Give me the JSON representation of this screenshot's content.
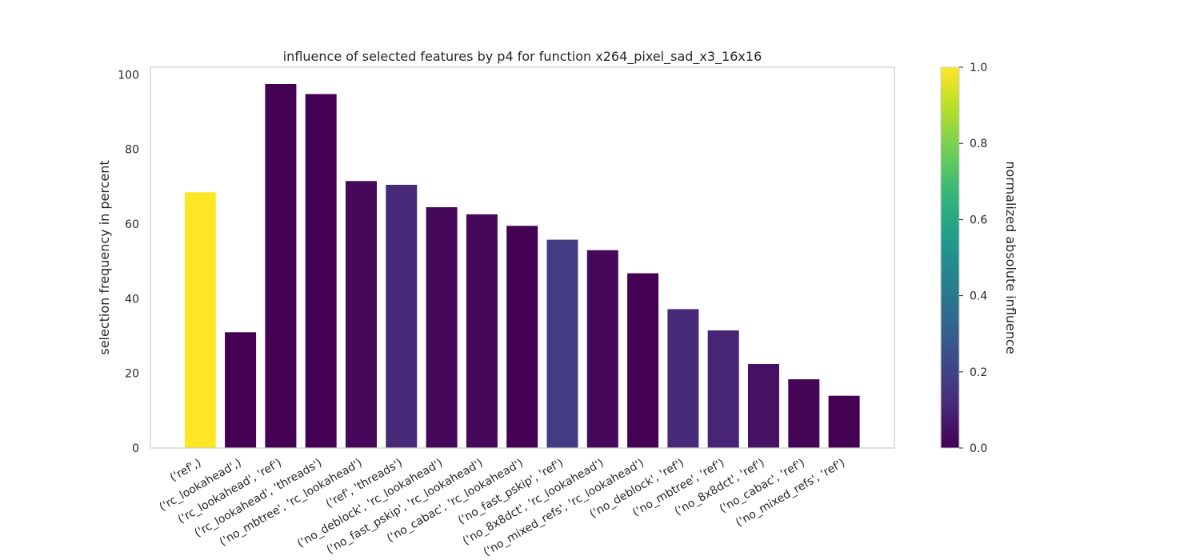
{
  "chart_data": {
    "type": "bar",
    "title": "influence of selected features by p4 for function x264_pixel_sad_x3_16x16",
    "xlabel": "",
    "ylabel": "selection frequency in percent",
    "ylim": [
      0,
      102
    ],
    "yticks": [
      0,
      20,
      40,
      60,
      80,
      100
    ],
    "grid": false,
    "categories": [
      "('ref',)",
      "('rc_lookahead',)",
      "('rc_lookahead', 'ref')",
      "('rc_lookahead', 'threads')",
      "('no_mbtree', 'rc_lookahead')",
      "('ref', 'threads')",
      "('no_deblock', 'rc_lookahead')",
      "('no_fast_pskip', 'rc_lookahead')",
      "('no_cabac', 'rc_lookahead')",
      "('no_fast_pskip', 'ref')",
      "('no_8x8dct', 'rc_lookahead')",
      "('no_mixed_refs', 'rc_lookahead')",
      "('no_deblock', 'ref')",
      "('no_mbtree', 'ref')",
      "('no_8x8dct', 'ref')",
      "('no_cabac', 'ref')",
      "('no_mixed_refs', 'ref')"
    ],
    "values": [
      68.5,
      31.0,
      97.5,
      94.8,
      71.5,
      70.5,
      64.5,
      62.6,
      59.5,
      55.8,
      53.0,
      46.8,
      37.2,
      31.5,
      22.5,
      18.4,
      14.0
    ],
    "influence": [
      1.0,
      0.0,
      0.0,
      0.0,
      0.02,
      0.12,
      0.02,
      0.02,
      0.0,
      0.18,
      0.02,
      0.0,
      0.12,
      0.1,
      0.05,
      0.01,
      0.0
    ],
    "colorbar": {
      "label": "normalized absolute influence",
      "range": [
        0,
        1
      ],
      "ticks": [
        "0.0",
        "0.2",
        "0.4",
        "0.6",
        "0.8",
        "1.0"
      ],
      "colormap": "viridis",
      "colors": [
        "#440154",
        "#482878",
        "#3e4989",
        "#31688e",
        "#26828e",
        "#1f9e89",
        "#35b779",
        "#6ece58",
        "#b5de2b",
        "#fde725"
      ]
    },
    "axis_color": "#cccccc",
    "text_color": "#262626"
  }
}
